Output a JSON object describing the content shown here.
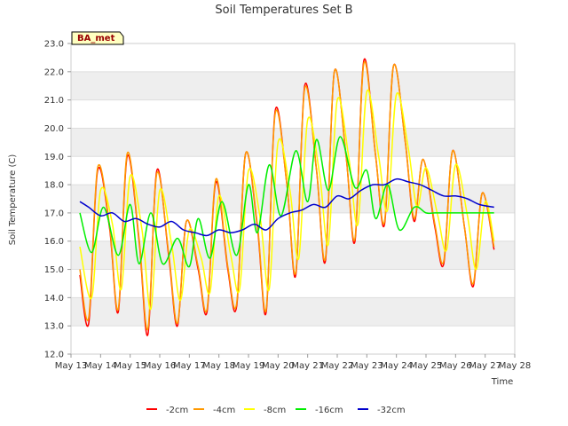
{
  "chart_data": {
    "type": "line",
    "title": "Soil Temperatures Set B",
    "xlabel": "Time",
    "ylabel": "Soil Temperature (C)",
    "ylim": [
      12.0,
      23.0
    ],
    "xlim": [
      13,
      28
    ],
    "x_ticks": [
      {
        "value": 13,
        "label": "May 13"
      },
      {
        "value": 14,
        "label": "May 14"
      },
      {
        "value": 15,
        "label": "May 15"
      },
      {
        "value": 16,
        "label": "May 16"
      },
      {
        "value": 17,
        "label": "May 17"
      },
      {
        "value": 18,
        "label": "May 18"
      },
      {
        "value": 19,
        "label": "May 19"
      },
      {
        "value": 20,
        "label": "May 20"
      },
      {
        "value": 21,
        "label": "May 21"
      },
      {
        "value": 22,
        "label": "May 22"
      },
      {
        "value": 23,
        "label": "May 23"
      },
      {
        "value": 24,
        "label": "May 24"
      },
      {
        "value": 25,
        "label": "May 25"
      },
      {
        "value": 26,
        "label": "May 26"
      },
      {
        "value": 27,
        "label": "May 27"
      },
      {
        "value": 28,
        "label": "May 28"
      }
    ],
    "y_ticks": [
      "12.0",
      "13.0",
      "14.0",
      "15.0",
      "16.0",
      "17.0",
      "18.0",
      "19.0",
      "20.0",
      "21.0",
      "22.0",
      "23.0"
    ],
    "grid": "horizontal bands",
    "legend_position": "bottom",
    "site_label": "BA_met",
    "series": [
      {
        "name": "-2cm",
        "color": "#ff0000",
        "x": [
          13.3,
          13.6,
          13.9,
          14.3,
          14.6,
          14.9,
          15.3,
          15.6,
          15.9,
          16.3,
          16.6,
          16.9,
          17.3,
          17.6,
          17.9,
          18.3,
          18.6,
          18.9,
          19.3,
          19.6,
          19.9,
          20.3,
          20.6,
          20.9,
          21.3,
          21.6,
          21.9,
          22.3,
          22.6,
          22.9,
          23.3,
          23.6,
          23.9,
          24.3,
          24.6,
          24.9,
          25.3,
          25.6,
          25.9,
          26.3,
          26.6,
          26.9,
          27.3
        ],
        "values": [
          14.8,
          13.1,
          18.5,
          16.5,
          13.5,
          19.0,
          16.0,
          12.7,
          18.5,
          15.5,
          13.0,
          16.7,
          15.0,
          13.5,
          18.1,
          15.0,
          13.7,
          19.1,
          16.5,
          13.5,
          20.6,
          18.0,
          14.8,
          21.5,
          18.5,
          15.3,
          22.0,
          19.0,
          16.0,
          22.4,
          19.0,
          16.6,
          22.2,
          19.5,
          16.7,
          18.9,
          16.5,
          15.2,
          19.2,
          16.5,
          14.4,
          17.7,
          15.7
        ]
      },
      {
        "name": "-4cm",
        "color": "#ff9900",
        "x": [
          13.3,
          13.6,
          13.9,
          14.3,
          14.6,
          14.9,
          15.3,
          15.6,
          15.9,
          16.3,
          16.6,
          16.9,
          17.3,
          17.6,
          17.9,
          18.3,
          18.6,
          18.9,
          19.3,
          19.6,
          19.9,
          20.3,
          20.6,
          20.9,
          21.3,
          21.6,
          21.9,
          22.3,
          22.6,
          22.9,
          23.3,
          23.6,
          23.9,
          24.3,
          24.6,
          24.9,
          25.3,
          25.6,
          25.9,
          26.3,
          26.6,
          26.9,
          27.3
        ],
        "values": [
          15.0,
          13.3,
          18.6,
          16.6,
          13.6,
          19.1,
          16.1,
          12.9,
          18.4,
          15.6,
          13.1,
          16.7,
          15.1,
          13.6,
          18.2,
          15.1,
          13.8,
          19.1,
          16.6,
          13.6,
          20.5,
          18.0,
          14.9,
          21.4,
          18.5,
          15.4,
          22.0,
          19.0,
          16.1,
          22.3,
          19.0,
          16.7,
          22.2,
          19.5,
          16.8,
          18.9,
          16.6,
          15.3,
          19.2,
          16.5,
          14.5,
          17.7,
          15.8
        ]
      },
      {
        "name": "-8cm",
        "color": "#ffff00",
        "x": [
          13.3,
          13.7,
          14.0,
          14.4,
          14.7,
          15.0,
          15.4,
          15.7,
          16.0,
          16.4,
          16.7,
          17.0,
          17.4,
          17.7,
          18.0,
          18.4,
          18.7,
          19.0,
          19.4,
          19.7,
          20.0,
          20.4,
          20.7,
          21.0,
          21.4,
          21.7,
          22.0,
          22.4,
          22.7,
          23.0,
          23.4,
          23.7,
          24.0,
          24.4,
          24.7,
          25.0,
          25.4,
          25.7,
          26.0,
          26.4,
          26.7,
          27.0,
          27.3
        ],
        "values": [
          15.8,
          14.0,
          17.8,
          16.6,
          14.3,
          18.3,
          16.4,
          13.6,
          17.8,
          15.9,
          13.9,
          16.4,
          15.4,
          14.2,
          17.6,
          15.5,
          14.3,
          18.5,
          16.8,
          14.3,
          19.5,
          17.8,
          15.4,
          20.3,
          18.4,
          15.9,
          21.0,
          18.9,
          16.6,
          21.3,
          19.0,
          17.1,
          21.2,
          19.3,
          17.2,
          18.6,
          16.9,
          15.7,
          18.7,
          16.9,
          15.0,
          17.4,
          16.0
        ]
      },
      {
        "name": "-16cm",
        "color": "#00ee00",
        "x": [
          13.3,
          13.7,
          14.1,
          14.6,
          15.0,
          15.3,
          15.7,
          16.1,
          16.6,
          17.0,
          17.3,
          17.7,
          18.1,
          18.6,
          19.0,
          19.3,
          19.7,
          20.1,
          20.6,
          21.0,
          21.3,
          21.7,
          22.1,
          22.6,
          23.0,
          23.3,
          23.7,
          24.1,
          24.6,
          25.0,
          25.3,
          25.7,
          26.1,
          26.6,
          27.0,
          27.3
        ],
        "values": [
          17.0,
          15.6,
          17.2,
          15.5,
          17.3,
          15.2,
          17.0,
          15.2,
          16.1,
          15.1,
          16.8,
          15.4,
          17.4,
          15.5,
          18.0,
          16.3,
          18.7,
          16.9,
          19.2,
          17.4,
          19.6,
          17.8,
          19.7,
          17.9,
          18.5,
          16.8,
          18.0,
          16.4,
          17.2,
          17.0,
          17.0,
          17.0,
          17.0,
          17.0,
          17.0,
          17.0
        ]
      },
      {
        "name": "-32cm",
        "color": "#0000cc",
        "x": [
          13.3,
          13.6,
          14.0,
          14.4,
          14.8,
          15.2,
          15.6,
          16.0,
          16.4,
          16.8,
          17.2,
          17.6,
          18.0,
          18.4,
          18.8,
          19.2,
          19.6,
          20.0,
          20.4,
          20.8,
          21.2,
          21.6,
          22.0,
          22.4,
          22.8,
          23.2,
          23.6,
          24.0,
          24.4,
          24.8,
          25.2,
          25.6,
          26.0,
          26.4,
          26.8,
          27.3
        ],
        "values": [
          17.4,
          17.2,
          16.9,
          17.0,
          16.7,
          16.8,
          16.6,
          16.5,
          16.7,
          16.4,
          16.3,
          16.2,
          16.4,
          16.3,
          16.4,
          16.6,
          16.4,
          16.8,
          17.0,
          17.1,
          17.3,
          17.2,
          17.6,
          17.5,
          17.8,
          18.0,
          18.0,
          18.2,
          18.1,
          18.0,
          17.8,
          17.6,
          17.6,
          17.5,
          17.3,
          17.2
        ]
      }
    ]
  }
}
